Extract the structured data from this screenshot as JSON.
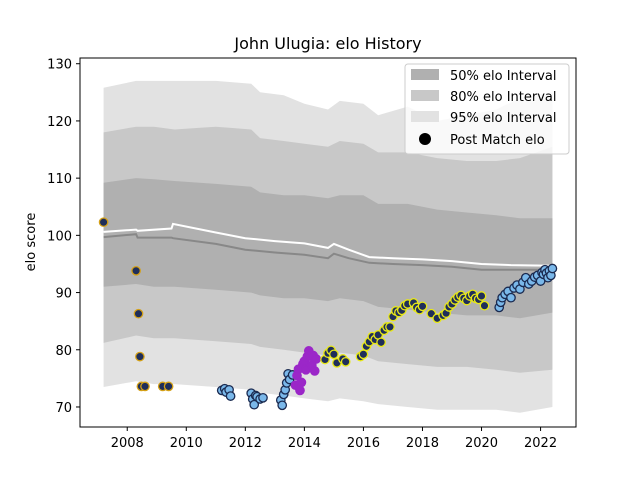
{
  "chart_data": {
    "type": "scatter",
    "title": "John Ulugia: elo History",
    "xlabel": "",
    "ylabel": "elo score",
    "xlim": [
      2006.4,
      2023.2
    ],
    "ylim": [
      66.5,
      131
    ],
    "xticks": [
      2008,
      2010,
      2012,
      2014,
      2016,
      2018,
      2020,
      2022
    ],
    "yticks": [
      70,
      80,
      90,
      100,
      110,
      120,
      130
    ],
    "legend": {
      "position": "top-right",
      "entries": [
        "50% elo Interval",
        "80% elo Interval",
        "95% elo Interval",
        "Post Match elo"
      ]
    },
    "colors": {
      "band50": "#b0b0b0",
      "band80": "#c8c8c8",
      "band95": "#e2e2e2",
      "median_line": "#ffffff",
      "mean_line": "#888888",
      "point_edge": "#1a2a50"
    },
    "bands": {
      "x": [
        2007.2,
        2008.3,
        2008.9,
        2009.6,
        2011.0,
        2012.2,
        2012.5,
        2013.3,
        2014.0,
        2014.8,
        2015.2,
        2016.0,
        2016.5,
        2017.5,
        2018.5,
        2019.5,
        2020.5,
        2021.3,
        2022.4
      ],
      "p95_upper": [
        125.8,
        127.0,
        127.0,
        127.0,
        127.0,
        126.5,
        125.0,
        124.5,
        123.0,
        122.0,
        123.5,
        123.0,
        121.0,
        122.5,
        120.0,
        121.0,
        122.0,
        124.0,
        125.0
      ],
      "p80_upper": [
        118.0,
        119.0,
        119.0,
        118.5,
        119.0,
        118.5,
        117.0,
        116.5,
        116.0,
        115.5,
        116.5,
        116.0,
        114.5,
        114.5,
        113.5,
        113.0,
        113.0,
        113.5,
        115.5
      ],
      "p50_upper": [
        109.2,
        110.0,
        109.8,
        109.5,
        109.0,
        108.5,
        107.5,
        107.0,
        107.0,
        106.5,
        107.0,
        107.0,
        105.5,
        105.5,
        104.5,
        104.0,
        103.5,
        103.0,
        103.0
      ],
      "p50_lower": [
        91.0,
        91.5,
        91.0,
        91.0,
        90.5,
        90.0,
        89.5,
        89.0,
        89.0,
        88.5,
        89.0,
        88.5,
        87.5,
        87.0,
        86.5,
        86.0,
        86.0,
        85.5,
        86.5
      ],
      "p80_lower": [
        81.2,
        82.5,
        82.0,
        82.0,
        81.5,
        81.0,
        80.5,
        80.0,
        79.5,
        79.0,
        79.5,
        79.0,
        78.0,
        77.5,
        77.0,
        77.0,
        76.5,
        76.0,
        76.5
      ],
      "p95_lower": [
        73.5,
        74.5,
        74.0,
        74.0,
        73.5,
        73.0,
        72.5,
        72.0,
        71.5,
        71.0,
        71.5,
        71.0,
        70.5,
        70.0,
        69.5,
        69.5,
        69.5,
        69.0,
        70.0
      ]
    },
    "median_line": {
      "x": [
        2007.2,
        2008.3,
        2008.35,
        2009.5,
        2009.55,
        2011.0,
        2012.0,
        2013.0,
        2014.0,
        2014.8,
        2015.0,
        2015.5,
        2016.2,
        2017.0,
        2018.0,
        2019.0,
        2020.0,
        2021.0,
        2022.4
      ],
      "y": [
        100.6,
        101.0,
        100.8,
        101.2,
        102.0,
        100.5,
        99.5,
        99.0,
        98.6,
        97.8,
        98.5,
        97.5,
        96.2,
        96.0,
        95.8,
        95.5,
        95.0,
        94.8,
        94.7
      ]
    },
    "mean_line": {
      "x": [
        2007.2,
        2008.3,
        2008.35,
        2009.5,
        2009.55,
        2011.0,
        2012.0,
        2013.0,
        2014.0,
        2014.8,
        2015.0,
        2015.5,
        2016.2,
        2017.0,
        2018.0,
        2019.0,
        2020.0,
        2021.0,
        2022.4
      ],
      "y": [
        99.7,
        100.2,
        99.6,
        99.6,
        99.5,
        98.5,
        97.5,
        97.0,
        96.6,
        96.0,
        96.8,
        96.0,
        95.2,
        95.0,
        94.8,
        94.5,
        94.0,
        94.0,
        94.0
      ]
    },
    "series": [
      {
        "fill": "#1f2e5a",
        "edge": "#d4a017",
        "x": [
          2007.2,
          2008.3,
          2008.38,
          2008.43,
          2008.48,
          2008.6,
          2009.2,
          2009.4
        ],
        "y": [
          102.3,
          93.8,
          86.3,
          78.8,
          73.6,
          73.6,
          73.6,
          73.6
        ]
      },
      {
        "fill": "#7ab8ea",
        "edge": "#1a2a50",
        "x": [
          2011.2,
          2011.3,
          2011.35,
          2011.45,
          2011.5,
          2012.2,
          2012.25,
          2012.3,
          2012.35,
          2012.4,
          2012.5,
          2012.6,
          2013.2,
          2013.25,
          2013.3,
          2013.35,
          2013.4,
          2013.45,
          2013.5,
          2013.6
        ],
        "y": [
          72.9,
          73.2,
          72.6,
          73.0,
          71.9,
          72.4,
          71.4,
          70.4,
          72.0,
          71.8,
          71.4,
          71.6,
          71.2,
          70.3,
          72.2,
          73.0,
          74.2,
          75.8,
          74.8,
          75.6
        ]
      },
      {
        "fill": "#9b27c8",
        "edge": "#9b27c8",
        "x": [
          2013.7,
          2013.75,
          2013.8,
          2013.85,
          2013.9,
          2013.95,
          2014.0,
          2014.05,
          2014.1,
          2014.15,
          2014.2,
          2014.25,
          2014.3,
          2014.35,
          2014.4
        ],
        "y": [
          73.8,
          75.5,
          76.6,
          72.9,
          74.3,
          77.5,
          78.0,
          76.5,
          78.8,
          79.8,
          78.9,
          77.3,
          79.0,
          76.3,
          78.4
        ]
      },
      {
        "fill": "#1f2e5a",
        "edge": "#e8e817",
        "x": [
          2014.7,
          2014.8,
          2014.9,
          2015.0,
          2015.1,
          2015.3,
          2015.4,
          2015.9,
          2016.0,
          2016.1,
          2016.2,
          2016.3,
          2016.4,
          2016.5,
          2016.6,
          2016.7,
          2016.8,
          2016.9,
          2017.0,
          2017.1,
          2017.2,
          2017.3,
          2017.4,
          2017.5,
          2017.7,
          2017.8,
          2017.9,
          2018.0,
          2018.3,
          2018.5,
          2018.7,
          2018.8,
          2018.9,
          2019.0,
          2019.1,
          2019.2,
          2019.3,
          2019.4,
          2019.5,
          2019.6,
          2019.7,
          2019.8,
          2019.9,
          2020.0,
          2020.1
        ],
        "y": [
          78.3,
          79.4,
          79.9,
          79.2,
          77.7,
          78.4,
          77.9,
          78.8,
          79.2,
          80.6,
          81.4,
          82.3,
          81.8,
          82.6,
          81.3,
          83.4,
          84.0,
          84.0,
          85.8,
          86.8,
          86.5,
          86.9,
          87.7,
          88.0,
          88.2,
          87.4,
          87.0,
          87.6,
          86.3,
          85.5,
          86.0,
          86.4,
          87.5,
          88.0,
          88.7,
          89.2,
          89.5,
          89.0,
          88.6,
          89.4,
          89.7,
          89.0,
          88.8,
          89.4,
          87.7
        ]
      },
      {
        "fill": "#7ab8ea",
        "edge": "#1a2a50",
        "x": [
          2020.6,
          2020.65,
          2020.7,
          2020.8,
          2020.9,
          2021.0,
          2021.1,
          2021.2,
          2021.3,
          2021.4,
          2021.5,
          2021.6,
          2021.7,
          2021.8,
          2021.9,
          2022.0,
          2022.05,
          2022.1,
          2022.15,
          2022.2,
          2022.25,
          2022.3,
          2022.35,
          2022.4
        ],
        "y": [
          87.4,
          88.3,
          89.1,
          89.7,
          90.2,
          89.1,
          90.8,
          91.3,
          90.6,
          91.8,
          92.6,
          91.5,
          92.0,
          92.7,
          93.0,
          92.0,
          93.5,
          93.2,
          94.0,
          93.4,
          92.6,
          93.8,
          93.0,
          94.2
        ]
      }
    ]
  }
}
